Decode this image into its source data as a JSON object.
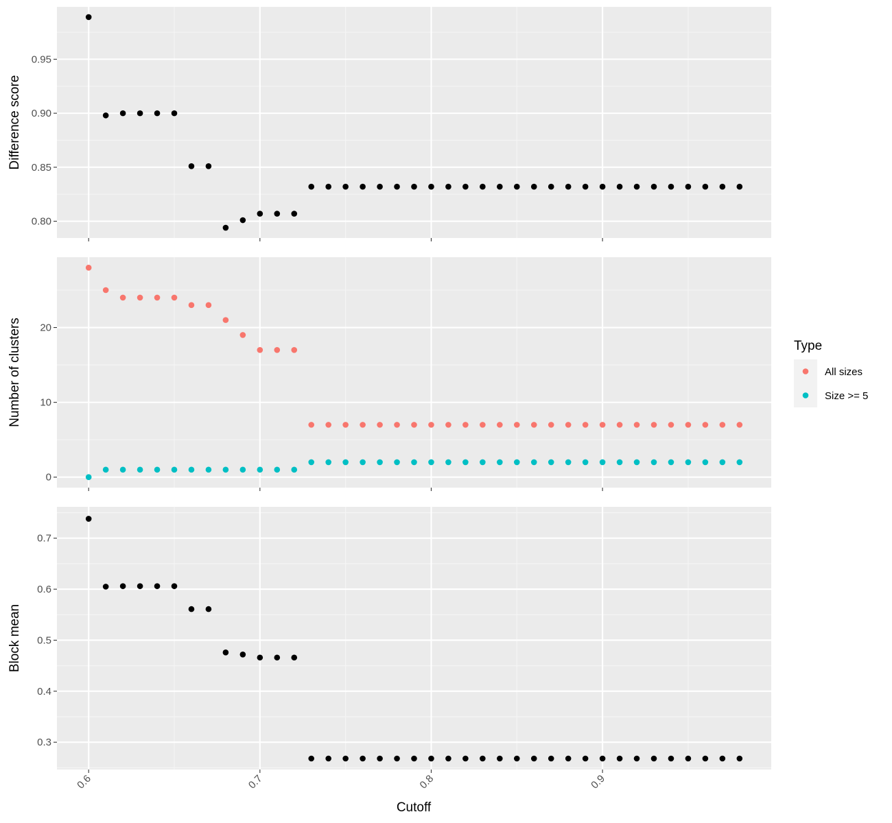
{
  "chart_data": {
    "type": "scatter",
    "layout": "facets-stacked-vertically",
    "xlabel": "Cutoff",
    "x_ticks": [
      0.6,
      0.7,
      0.8,
      0.9
    ],
    "x_tick_labels": [
      "0.6",
      "0.7",
      "0.8",
      "0.9"
    ],
    "xlim": [
      0.5815,
      0.9985
    ],
    "x": [
      0.6,
      0.61,
      0.62,
      0.63,
      0.64,
      0.65,
      0.66,
      0.67,
      0.68,
      0.69,
      0.7,
      0.71,
      0.72,
      0.73,
      0.74,
      0.75,
      0.76,
      0.77,
      0.78,
      0.79,
      0.8,
      0.81,
      0.82,
      0.83,
      0.84,
      0.85,
      0.86,
      0.87,
      0.88,
      0.89,
      0.9,
      0.91,
      0.92,
      0.93,
      0.94,
      0.95,
      0.96,
      0.97,
      0.98
    ],
    "grid": true,
    "panels": [
      {
        "ylabel": "Difference score",
        "ylim": [
          0.7845,
          0.9985
        ],
        "y_ticks": [
          0.8,
          0.85,
          0.9,
          0.95
        ],
        "y_tick_labels": [
          "0.80",
          "0.85",
          "0.90",
          "0.95"
        ],
        "series": [
          {
            "color": "#000000",
            "values": [
              0.989,
              0.898,
              0.9,
              0.9,
              0.9,
              0.9,
              0.851,
              0.851,
              0.794,
              0.801,
              0.807,
              0.807,
              0.807,
              0.832,
              0.832,
              0.832,
              0.832,
              0.832,
              0.832,
              0.832,
              0.832,
              0.832,
              0.832,
              0.832,
              0.832,
              0.832,
              0.832,
              0.832,
              0.832,
              0.832,
              0.832,
              0.832,
              0.832,
              0.832,
              0.832,
              0.832,
              0.832,
              0.832,
              0.832
            ]
          }
        ]
      },
      {
        "ylabel": "Number of clusters",
        "ylim": [
          -1.4,
          29.4
        ],
        "y_ticks": [
          0,
          10,
          20
        ],
        "y_tick_labels": [
          "0",
          "10",
          "20"
        ],
        "series": [
          {
            "name": "All sizes",
            "color": "#F8766D",
            "values": [
              28,
              25,
              24,
              24,
              24,
              24,
              23,
              23,
              21,
              19,
              17,
              17,
              17,
              7,
              7,
              7,
              7,
              7,
              7,
              7,
              7,
              7,
              7,
              7,
              7,
              7,
              7,
              7,
              7,
              7,
              7,
              7,
              7,
              7,
              7,
              7,
              7,
              7,
              7
            ]
          },
          {
            "name": "Size >= 5",
            "color": "#00BFC4",
            "values": [
              0,
              1,
              1,
              1,
              1,
              1,
              1,
              1,
              1,
              1,
              1,
              1,
              1,
              2,
              2,
              2,
              2,
              2,
              2,
              2,
              2,
              2,
              2,
              2,
              2,
              2,
              2,
              2,
              2,
              2,
              2,
              2,
              2,
              2,
              2,
              2,
              2,
              2,
              2
            ]
          }
        ]
      },
      {
        "ylabel": "Block mean",
        "ylim": [
          0.2465,
          0.7615
        ],
        "y_ticks": [
          0.3,
          0.4,
          0.5,
          0.6,
          0.7
        ],
        "y_tick_labels": [
          "0.3",
          "0.4",
          "0.5",
          "0.6",
          "0.7"
        ],
        "series": [
          {
            "color": "#000000",
            "values": [
              0.738,
              0.605,
              0.606,
              0.606,
              0.606,
              0.606,
              0.561,
              0.561,
              0.476,
              0.472,
              0.466,
              0.466,
              0.466,
              0.268,
              0.268,
              0.268,
              0.268,
              0.268,
              0.268,
              0.268,
              0.268,
              0.268,
              0.268,
              0.268,
              0.268,
              0.268,
              0.268,
              0.268,
              0.268,
              0.268,
              0.268,
              0.268,
              0.268,
              0.268,
              0.268,
              0.268,
              0.268,
              0.268,
              0.268
            ]
          }
        ]
      }
    ],
    "legend": {
      "title": "Type",
      "position": "right",
      "entries": [
        {
          "label": "All sizes",
          "color": "#F8766D"
        },
        {
          "label": "Size >= 5",
          "color": "#00BFC4"
        }
      ]
    }
  },
  "colors": {
    "panel_background": "#EBEBEB",
    "grid_major": "#FFFFFF",
    "grid_minor": "#F5F5F5",
    "tick_mark": "#333333",
    "legend_key_background": "#F2F2F2"
  }
}
